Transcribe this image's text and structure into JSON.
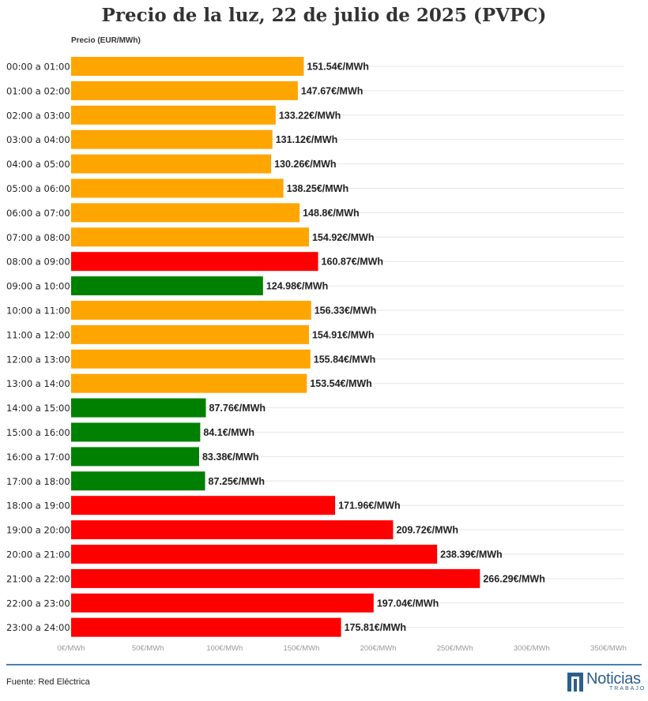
{
  "page": {
    "source": "Fuente: Red Eléctrica",
    "logo": {
      "main": "Noticias",
      "sub": "TRABAJO"
    }
  },
  "chart_data": {
    "type": "bar",
    "orientation": "horizontal",
    "title": "Precio de la luz, 22 de julio de 2025 (PVPC)",
    "unit_label": "Precio (EUR/MWh)",
    "xlim": [
      0,
      350
    ],
    "x_ticks": [
      0,
      50,
      100,
      150,
      200,
      250,
      300,
      350
    ],
    "x_tick_labels": [
      "0€/MWh",
      "50€/MWh",
      "100€/MWh",
      "150€/MWh",
      "200€/MWh",
      "250€/MWh",
      "300€/MWh",
      "350€/MWh"
    ],
    "grid": true,
    "colors": {
      "orange": "#ffa500",
      "red": "#ff0000",
      "green": "#008000"
    },
    "categories": [
      "00:00 a 01:00",
      "01:00 a 02:00",
      "02:00 a 03:00",
      "03:00 a 04:00",
      "04:00 a 05:00",
      "05:00 a 06:00",
      "06:00 a 07:00",
      "07:00 a 08:00",
      "08:00 a 09:00",
      "09:00 a 10:00",
      "10:00 a 11:00",
      "11:00 a 12:00",
      "12:00 a 13:00",
      "13:00 a 14:00",
      "14:00 a 15:00",
      "15:00 a 16:00",
      "16:00 a 17:00",
      "17:00 a 18:00",
      "18:00 a 19:00",
      "19:00 a 20:00",
      "20:00 a 21:00",
      "21:00 a 22:00",
      "22:00 a 23:00",
      "23:00 a 24:00"
    ],
    "values": [
      151.54,
      147.67,
      133.22,
      131.12,
      130.26,
      138.25,
      148.8,
      154.92,
      160.87,
      124.98,
      156.33,
      154.91,
      155.84,
      153.54,
      87.76,
      84.1,
      83.38,
      87.25,
      171.96,
      209.72,
      238.39,
      266.29,
      197.04,
      175.81
    ],
    "labels": [
      "151.54€/MWh",
      "147.67€/MWh",
      "133.22€/MWh",
      "131.12€/MWh",
      "130.26€/MWh",
      "138.25€/MWh",
      "148.8€/MWh",
      "154.92€/MWh",
      "160.87€/MWh",
      "124.98€/MWh",
      "156.33€/MWh",
      "154.91€/MWh",
      "155.84€/MWh",
      "153.54€/MWh",
      "87.76€/MWh",
      "84.1€/MWh",
      "83.38€/MWh",
      "87.25€/MWh",
      "171.96€/MWh",
      "209.72€/MWh",
      "238.39€/MWh",
      "266.29€/MWh",
      "197.04€/MWh",
      "175.81€/MWh"
    ],
    "bar_colors": [
      "orange",
      "orange",
      "orange",
      "orange",
      "orange",
      "orange",
      "orange",
      "orange",
      "red",
      "green",
      "orange",
      "orange",
      "orange",
      "orange",
      "green",
      "green",
      "green",
      "green",
      "red",
      "red",
      "red",
      "red",
      "red",
      "red"
    ]
  }
}
